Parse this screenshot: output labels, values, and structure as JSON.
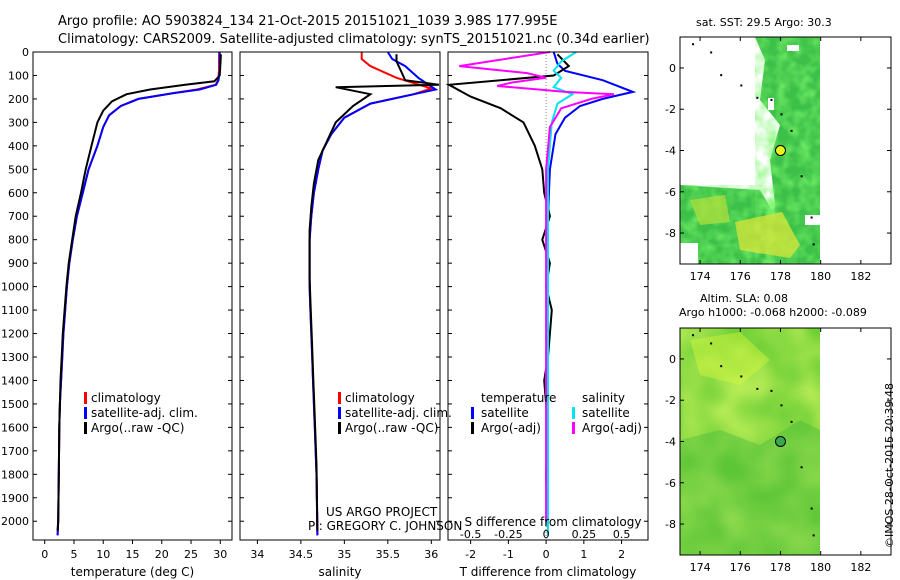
{
  "header": {
    "line1": "Argo profile: AO 5903824_134 21-Oct-2015 20151021_1039 3.98S 177.995E",
    "line2": "Climatology: CARS2009. Satellite-adjusted climatology: synTS_20151021.nc (0.34d earlier)"
  },
  "side_label": "©IMOS 28-Oct-2015 20:39:48",
  "credits": {
    "line1": "US ARGO PROJECT",
    "line2": "PI: GREGORY C. JOHNSON"
  },
  "colors": {
    "red": "#ff0000",
    "blue": "#0000ff",
    "black": "#000000",
    "cyan": "#00e5ee",
    "magenta": "#ff00ff"
  },
  "chart_data": [
    {
      "type": "line",
      "xlabel": "temperature (deg C)",
      "ylabel": "",
      "xlim": [
        -2,
        32
      ],
      "ylim": [
        2080,
        0
      ],
      "xticks": [
        0,
        5,
        10,
        15,
        20,
        25,
        30
      ],
      "yticks": [
        0,
        100,
        200,
        300,
        400,
        500,
        600,
        700,
        800,
        900,
        1000,
        1100,
        1200,
        1300,
        1400,
        1500,
        1600,
        1700,
        1800,
        1900,
        2000
      ],
      "legend": [
        "climatology",
        "satellite-adj. clim.",
        "Argo(..raw -QC)"
      ],
      "series": [
        {
          "name": "climatology",
          "color": "#ff0000",
          "x": [
            29.8,
            29.8,
            29.6,
            29.2,
            26,
            22,
            16,
            13,
            11,
            10,
            9,
            7.5,
            6.5,
            5.5,
            4.8,
            4.2,
            3.8,
            3.5,
            3.2,
            3,
            2.8,
            2.6,
            2.5,
            2.4,
            2.3,
            2.2
          ],
          "y": [
            0,
            80,
            120,
            140,
            160,
            175,
            200,
            230,
            270,
            320,
            400,
            500,
            600,
            700,
            800,
            900,
            1000,
            1100,
            1200,
            1300,
            1400,
            1500,
            1600,
            1800,
            2000,
            2060
          ]
        },
        {
          "name": "satellite-adj. clim.",
          "color": "#0000ff",
          "x": [
            29.9,
            29.9,
            29.7,
            29.3,
            26.5,
            22,
            16,
            13,
            11,
            10,
            9,
            7.5,
            6.5,
            5.5,
            4.8,
            4.2,
            3.8,
            3.5,
            3.2,
            3,
            2.8,
            2.6,
            2.5,
            2.4,
            2.3,
            2.2
          ],
          "y": [
            0,
            80,
            120,
            140,
            160,
            175,
            200,
            230,
            270,
            320,
            400,
            500,
            600,
            700,
            800,
            900,
            1000,
            1100,
            1200,
            1300,
            1400,
            1500,
            1600,
            1800,
            2000,
            2060
          ]
        },
        {
          "name": "Argo(..raw -QC)",
          "color": "#000000",
          "x": [
            30.1,
            30,
            29.9,
            29,
            24,
            18,
            14,
            11.5,
            10,
            9,
            8,
            7,
            6.2,
            5.3,
            4.7,
            4.1,
            3.7,
            3.4,
            3.1,
            2.9,
            2.7,
            2.6,
            2.5,
            2.4,
            2.3,
            2.2
          ],
          "y": [
            10,
            60,
            100,
            125,
            140,
            160,
            180,
            210,
            250,
            300,
            400,
            500,
            600,
            700,
            800,
            900,
            1000,
            1100,
            1200,
            1300,
            1400,
            1500,
            1600,
            1800,
            2000,
            2040
          ]
        }
      ]
    },
    {
      "type": "line",
      "xlabel": "salinity",
      "ylabel": "",
      "xlim": [
        33.8,
        36.1
      ],
      "ylim": [
        2080,
        0
      ],
      "xticks": [
        34,
        34.5,
        35,
        35.5,
        36
      ],
      "legend": [
        "climatology",
        "satellite-adj. clim.",
        "Argo(..raw -QC)"
      ],
      "series": [
        {
          "name": "climatology",
          "color": "#ff0000",
          "x": [
            35.2,
            35.2,
            35.3,
            35.6,
            36,
            35.8,
            35.3,
            35,
            34.85,
            34.75,
            34.7,
            34.65,
            34.62,
            34.6,
            34.6,
            34.6,
            34.61,
            34.62,
            34.63,
            34.64,
            34.65,
            34.66,
            34.68,
            34.69
          ],
          "y": [
            0,
            30,
            60,
            110,
            155,
            180,
            220,
            280,
            350,
            420,
            500,
            600,
            700,
            800,
            900,
            1000,
            1100,
            1200,
            1300,
            1400,
            1500,
            1600,
            1800,
            2060
          ]
        },
        {
          "name": "satellite-adj. clim.",
          "color": "#0000ff",
          "x": [
            35.5,
            35.55,
            35.7,
            35.85,
            36.05,
            35.8,
            35.3,
            35,
            34.85,
            34.75,
            34.7,
            34.65,
            34.62,
            34.6,
            34.6,
            34.6,
            34.61,
            34.62,
            34.63,
            34.64,
            34.65,
            34.66,
            34.68,
            34.69
          ],
          "y": [
            0,
            30,
            60,
            110,
            160,
            180,
            220,
            280,
            350,
            420,
            500,
            600,
            700,
            800,
            900,
            1000,
            1100,
            1200,
            1300,
            1400,
            1500,
            1600,
            1800,
            2060
          ]
        },
        {
          "name": "Argo(..raw -QC)",
          "color": "#000000",
          "x": [
            35.6,
            35.6,
            35.65,
            35.7,
            36.1,
            34.9,
            35.3,
            35.1,
            34.9,
            34.8,
            34.7,
            34.65,
            34.62,
            34.6,
            34.6,
            34.6,
            34.61,
            34.62,
            34.63,
            34.64,
            34.65,
            34.66,
            34.68,
            34.69
          ],
          "y": [
            10,
            40,
            80,
            120,
            140,
            150,
            180,
            230,
            300,
            380,
            460,
            560,
            660,
            760,
            860,
            960,
            1060,
            1160,
            1260,
            1360,
            1460,
            1560,
            1760,
            2040
          ]
        }
      ]
    },
    {
      "type": "line",
      "xlabel": "T difference from climatology",
      "xlabel_top": "S difference from climatology",
      "xlim": [
        -2.6,
        2.7
      ],
      "ylim": [
        2080,
        0
      ],
      "xticks": [
        -2,
        -1,
        0,
        1,
        2
      ],
      "xticks_top": [
        -0.5,
        -0.25,
        0,
        0.25,
        0.5
      ],
      "legend_groups": [
        {
          "title": "temperature",
          "items": [
            "satellite",
            "Argo(-adj)"
          ]
        },
        {
          "title": "salinity",
          "items": [
            "satellite",
            "Argo(-adj)"
          ]
        }
      ],
      "series": [
        {
          "name": "satellite",
          "group": "temperature",
          "color": "#0000ff",
          "x": [
            0.2,
            0.3,
            0.5,
            1.5,
            2.3,
            1.5,
            0.9,
            0.5,
            0.25,
            0.1,
            0.05,
            0.05,
            0.05,
            0.05,
            0.05,
            0.05,
            0.05,
            0.05
          ],
          "y": [
            0,
            50,
            80,
            120,
            170,
            200,
            230,
            280,
            350,
            500,
            700,
            900,
            1100,
            1300,
            1500,
            1700,
            1900,
            2060
          ]
        },
        {
          "name": "Argo(-adj)",
          "group": "temperature",
          "color": "#000000",
          "x": [
            0.3,
            0.6,
            0.2,
            -3,
            -2,
            -1.2,
            -0.6,
            -0.3,
            -0.1,
            -0.05,
            0.1,
            -0.1,
            0.1,
            0,
            0.15,
            0.1,
            0.05,
            -0.05,
            0,
            0.05,
            0,
            0.05
          ],
          "y": [
            10,
            60,
            100,
            140,
            190,
            240,
            300,
            400,
            500,
            600,
            700,
            800,
            900,
            1000,
            1100,
            1200,
            1300,
            1400,
            1500,
            1600,
            1800,
            2040
          ]
        },
        {
          "name": "satellite",
          "group": "salinity",
          "color": "#00e5ee",
          "x": [
            0.8,
            0.4,
            0.2,
            0.4,
            0.2,
            0.7,
            0.3,
            0.15,
            0.05,
            0.05,
            0.05,
            0.05,
            0.05
          ],
          "y": [
            0,
            40,
            80,
            110,
            150,
            180,
            220,
            300,
            500,
            800,
            1200,
            1600,
            2060
          ]
        },
        {
          "name": "Argo(-adj)",
          "group": "salinity",
          "color": "#ff00ff",
          "x": [
            0.1,
            -1.5,
            -2.3,
            -0.5,
            0,
            -0.9,
            -1.3,
            -0.2,
            0.5,
            1.8,
            1.2,
            0.4,
            0.1,
            0,
            0,
            0
          ],
          "y": [
            0,
            40,
            60,
            90,
            110,
            130,
            145,
            160,
            170,
            180,
            200,
            240,
            320,
            500,
            1000,
            2000
          ]
        }
      ]
    },
    {
      "type": "heatmap",
      "title": "sat. SST: 29.5 Argo: 30.3",
      "xlim": [
        173,
        183.5
      ],
      "ylim": [
        -9.5,
        1.5
      ],
      "xticks": [
        174,
        176,
        178,
        180,
        182
      ],
      "yticks": [
        -8,
        -6,
        -4,
        -2,
        0
      ],
      "marker": {
        "lon": 178,
        "lat": -4
      }
    },
    {
      "type": "heatmap",
      "title": "Altim. SLA: 0.08",
      "subtitle": "Argo h1000: -0.068 h2000: -0.089",
      "xlim": [
        173,
        183.5
      ],
      "ylim": [
        -9.5,
        1.5
      ],
      "xticks": [
        174,
        176,
        178,
        180,
        182
      ],
      "yticks": [
        -8,
        -6,
        -4,
        -2,
        0
      ],
      "marker": {
        "lon": 178,
        "lat": -4
      }
    }
  ]
}
